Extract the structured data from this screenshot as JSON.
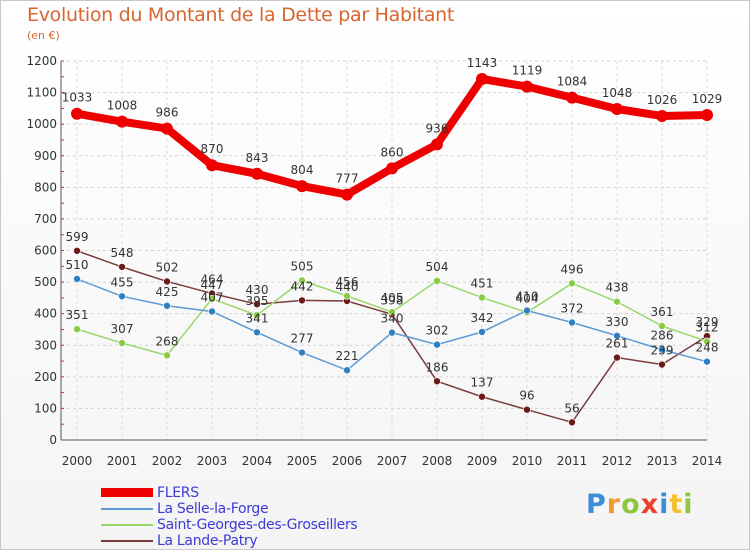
{
  "title": "Evolution du Montant de la Dette par Habitant",
  "subtitle": "(en €)",
  "logo": {
    "text": "Proxiti",
    "letters": [
      {
        "ch": "P",
        "color": "#3c8fd6"
      },
      {
        "ch": "r",
        "color": "#f29a2b"
      },
      {
        "ch": "o",
        "color": "#8dc63f"
      },
      {
        "ch": "x",
        "color": "#e8412c"
      },
      {
        "ch": "i",
        "color": "#3c8fd6"
      },
      {
        "ch": "t",
        "color": "#f2c12b"
      },
      {
        "ch": "i",
        "color": "#8dc63f"
      }
    ]
  },
  "chart_data": {
    "type": "line",
    "title": "Evolution du Montant de la Dette par Habitant",
    "subtitle": "(en €)",
    "xlabel": "",
    "ylabel": "",
    "ylim": [
      0,
      1200
    ],
    "yticks": [
      0,
      100,
      200,
      300,
      400,
      500,
      600,
      700,
      800,
      900,
      1000,
      1100,
      1200
    ],
    "grid": true,
    "legend_position": "bottom-left",
    "x": [
      "2000",
      "2001",
      "2002",
      "2003",
      "2004",
      "2005",
      "2006",
      "2007",
      "2008",
      "2009",
      "2010",
      "2011",
      "2012",
      "2013",
      "2014"
    ],
    "series": [
      {
        "name": "FLERS",
        "color": "#ee0000",
        "emphasis": true,
        "values": [
          1033,
          1008,
          986,
          870,
          843,
          804,
          777,
          860,
          936,
          1143,
          1119,
          1084,
          1048,
          1026,
          1029
        ]
      },
      {
        "name": "La Selle-la-Forge",
        "color": "#5b9bd5",
        "marker": "#2f7fc1",
        "values": [
          510,
          455,
          425,
          407,
          341,
          277,
          221,
          340,
          302,
          342,
          410,
          372,
          330,
          286,
          248
        ]
      },
      {
        "name": "Saint-Georges-des-Groseillers",
        "color": "#9ad76b",
        "marker": "#8acb44",
        "values": [
          351,
          307,
          268,
          447,
          395,
          505,
          456,
          405,
          504,
          451,
          404,
          496,
          438,
          361,
          312
        ]
      },
      {
        "name": "La Lande-Patry",
        "color": "#7a3b3b",
        "marker": "#6b1a1a",
        "values": [
          599,
          548,
          502,
          464,
          430,
          442,
          440,
          398,
          186,
          137,
          96,
          56,
          261,
          239,
          329
        ]
      }
    ]
  }
}
